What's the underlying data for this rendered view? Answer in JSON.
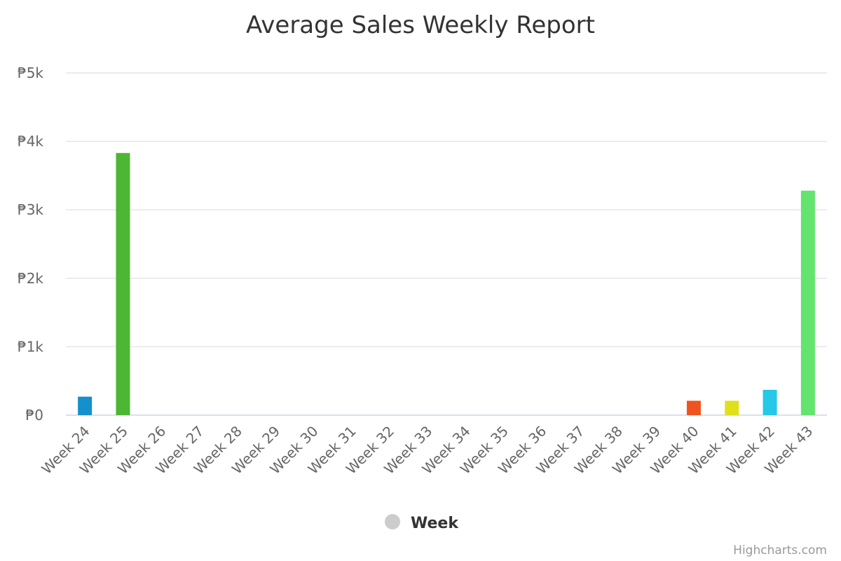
{
  "chart_data": {
    "type": "bar",
    "title": "Average Sales Weekly Report",
    "categories": [
      "Week 24",
      "Week 25",
      "Week 26",
      "Week 27",
      "Week 28",
      "Week 29",
      "Week 30",
      "Week 31",
      "Week 32",
      "Week 33",
      "Week 34",
      "Week 35",
      "Week 36",
      "Week 37",
      "Week 38",
      "Week 39",
      "Week 40",
      "Week 41",
      "Week 42",
      "Week 43"
    ],
    "series": [
      {
        "name": "Week",
        "values": [
          270,
          3830,
          0,
          0,
          0,
          0,
          0,
          0,
          0,
          0,
          0,
          0,
          0,
          0,
          0,
          0,
          210,
          210,
          370,
          3280
        ],
        "colors": [
          "#1490cc",
          "#4db733",
          "#cccccc",
          "#cccccc",
          "#cccccc",
          "#cccccc",
          "#cccccc",
          "#cccccc",
          "#cccccc",
          "#cccccc",
          "#cccccc",
          "#cccccc",
          "#cccccc",
          "#cccccc",
          "#cccccc",
          "#cccccc",
          "#f0541e",
          "#e0e01a",
          "#25c8e6",
          "#63e46f"
        ]
      }
    ],
    "ylim": [
      0,
      5000
    ],
    "yticks": [
      "₱0",
      "₱1k",
      "₱2k",
      "₱3k",
      "₱4k",
      "₱5k"
    ],
    "ytick_values": [
      0,
      1000,
      2000,
      3000,
      4000,
      5000
    ],
    "xlabel": "",
    "ylabel": "",
    "grid": true,
    "legend_position": "bottom-center",
    "legend_color": "#cccccc"
  },
  "credits": "Highcharts.com"
}
